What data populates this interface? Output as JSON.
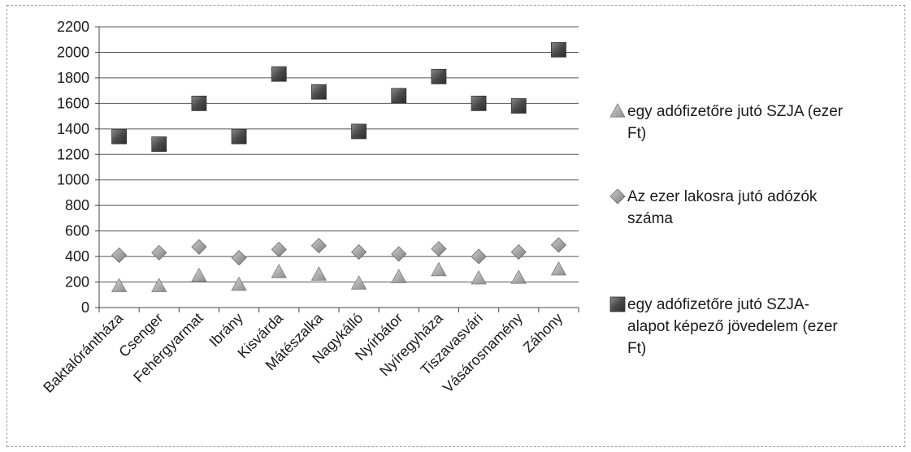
{
  "chart_data": {
    "type": "scatter",
    "title": "",
    "xlabel": "",
    "ylabel": "",
    "ylim": [
      0,
      2200
    ],
    "ytick_step": 200,
    "grid": true,
    "legend_position": "right",
    "categories": [
      "Baktalórántháza",
      "Csenger",
      "Fehérgyarmat",
      "Ibrány",
      "Kisvárda",
      "Mátészalka",
      "Nagykálló",
      "Nyírbátor",
      "Nyíregyháza",
      "Tiszavasvári",
      "Vásárosnamény",
      "Záhony"
    ],
    "series": [
      {
        "name": "egy adófizetőre jutó SZJA (ezer Ft)",
        "marker": "triangle",
        "color": "#9e9e9e",
        "values": [
          170,
          170,
          250,
          180,
          280,
          260,
          190,
          240,
          295,
          230,
          235,
          300
        ]
      },
      {
        "name": "Az ezer lakosra jutó adózók száma",
        "marker": "diamond",
        "color": "#8c8c8c",
        "values": [
          410,
          430,
          475,
          390,
          455,
          485,
          435,
          420,
          460,
          400,
          435,
          490
        ]
      },
      {
        "name": "egy adófizetőre jutó SZJA-alapot képező jövedelem (ezer Ft)",
        "marker": "square",
        "color": "#4a4a4a",
        "values": [
          1340,
          1280,
          1600,
          1340,
          1830,
          1690,
          1380,
          1660,
          1810,
          1600,
          1580,
          2020
        ]
      }
    ]
  },
  "legend": {
    "items": [
      {
        "lines": [
          "egy adófizetőre jutó SZJA (ezer",
          "Ft)"
        ]
      },
      {
        "lines": [
          "Az ezer lakosra jutó adózók",
          "száma"
        ]
      },
      {
        "lines": [
          "egy adófizetőre jutó SZJA-",
          "alapot képező jövedelem (ezer",
          "Ft)"
        ]
      }
    ]
  }
}
